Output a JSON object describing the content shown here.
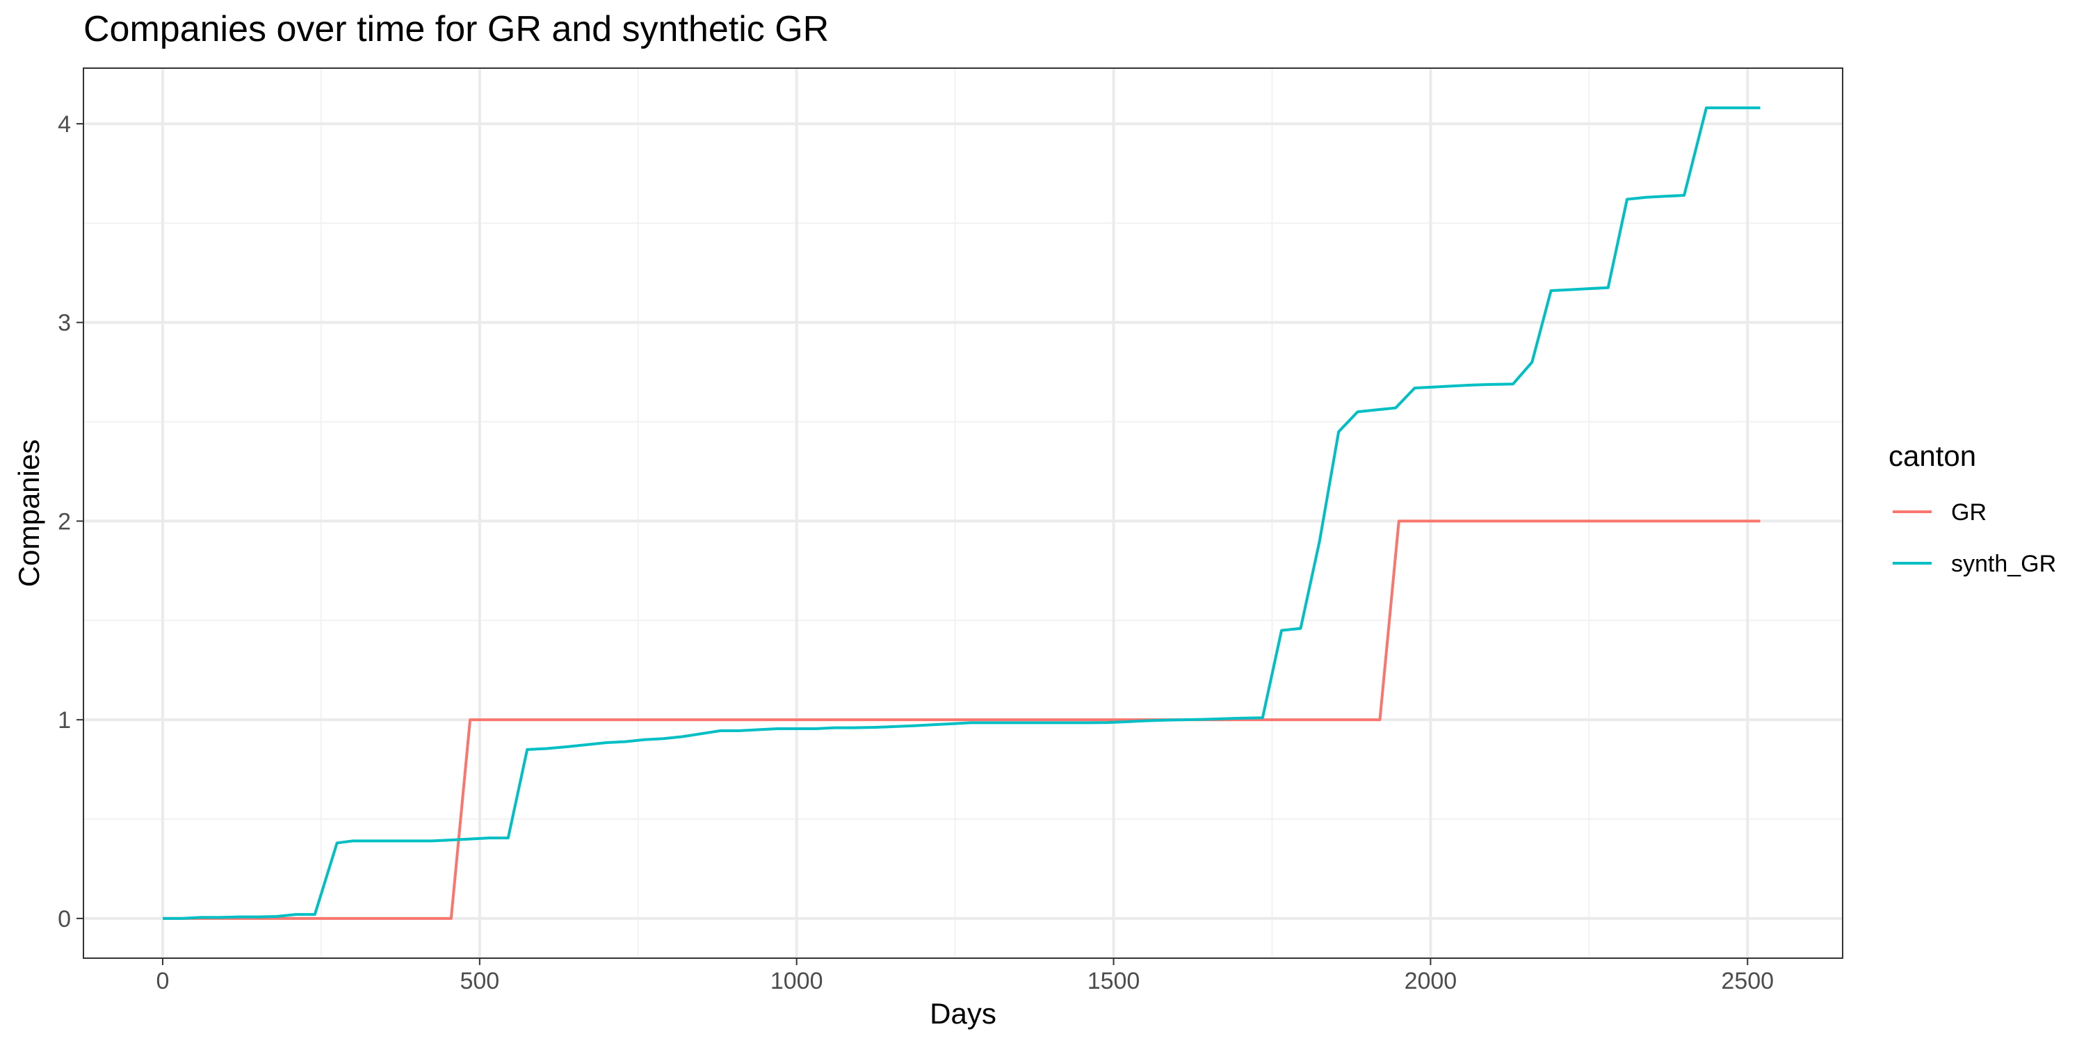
{
  "chart_data": {
    "type": "line",
    "title": "Companies over time for GR and synthetic GR",
    "xlabel": "Days",
    "ylabel": "Companies",
    "xlim": [
      -125,
      2650
    ],
    "ylim": [
      -0.2,
      4.28
    ],
    "x_ticks": [
      0,
      500,
      1000,
      1500,
      2000,
      2500
    ],
    "x_tick_labels": [
      "0",
      "500",
      "1000",
      "1500",
      "2000",
      "2500"
    ],
    "y_ticks": [
      0,
      1,
      2,
      3,
      4
    ],
    "y_tick_labels": [
      "0",
      "1",
      "2",
      "3",
      "4"
    ],
    "grid": true,
    "legend": {
      "title": "canton",
      "position": "right"
    },
    "series": [
      {
        "name": "GR",
        "color": "#F8766D",
        "x": [
          0,
          455,
          485,
          1920,
          1950,
          2520
        ],
        "y": [
          0,
          0,
          1,
          1,
          2,
          2
        ]
      },
      {
        "name": "synth_GR",
        "color": "#00BFC4",
        "x": [
          0,
          30,
          60,
          90,
          120,
          150,
          180,
          210,
          240,
          275,
          300,
          335,
          365,
          395,
          425,
          455,
          485,
          515,
          545,
          575,
          605,
          640,
          670,
          700,
          730,
          760,
          790,
          820,
          850,
          880,
          910,
          940,
          970,
          1000,
          1030,
          1060,
          1090,
          1125,
          1155,
          1185,
          1215,
          1245,
          1275,
          1305,
          1340,
          1370,
          1400,
          1430,
          1460,
          1490,
          1520,
          1550,
          1580,
          1610,
          1640,
          1670,
          1700,
          1735,
          1765,
          1795,
          1825,
          1855,
          1885,
          1915,
          1945,
          1975,
          2005,
          2035,
          2065,
          2095,
          2130,
          2160,
          2190,
          2220,
          2250,
          2280,
          2310,
          2340,
          2370,
          2400,
          2435,
          2465,
          2495,
          2520
        ],
        "y": [
          0,
          0,
          0.005,
          0.005,
          0.008,
          0.008,
          0.01,
          0.02,
          0.02,
          0.38,
          0.39,
          0.39,
          0.39,
          0.39,
          0.39,
          0.395,
          0.4,
          0.405,
          0.405,
          0.85,
          0.855,
          0.865,
          0.875,
          0.885,
          0.89,
          0.9,
          0.905,
          0.915,
          0.93,
          0.945,
          0.945,
          0.95,
          0.955,
          0.955,
          0.955,
          0.96,
          0.96,
          0.962,
          0.966,
          0.97,
          0.975,
          0.98,
          0.985,
          0.985,
          0.985,
          0.985,
          0.985,
          0.985,
          0.985,
          0.986,
          0.99,
          0.995,
          0.998,
          1.0,
          1.002,
          1.005,
          1.008,
          1.01,
          1.45,
          1.46,
          1.9,
          2.45,
          2.55,
          2.56,
          2.57,
          2.67,
          2.675,
          2.68,
          2.685,
          2.688,
          2.69,
          2.8,
          3.16,
          3.165,
          3.17,
          3.175,
          3.62,
          3.63,
          3.635,
          3.64,
          4.08,
          4.08,
          4.08,
          4.08
        ]
      }
    ]
  }
}
